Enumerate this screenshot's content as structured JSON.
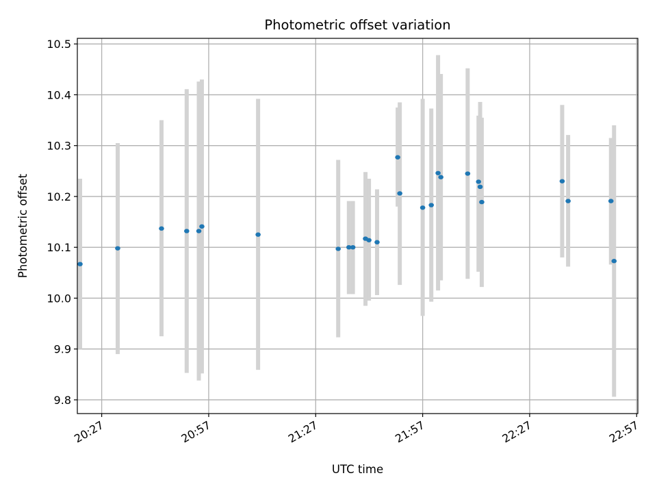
{
  "chart_data": {
    "type": "scatter",
    "title": "Photometric offset variation",
    "xlabel": "UTC time",
    "ylabel": "Photometric offset",
    "x_ticks": [
      "20:27",
      "20:57",
      "21:27",
      "21:57",
      "22:27",
      "22:57"
    ],
    "y_ticks": [
      "9.8",
      "9.9",
      "10.0",
      "10.1",
      "10.2",
      "10.3",
      "10.4",
      "10.5"
    ],
    "xlim": [
      "20:20:10",
      "22:57:20"
    ],
    "ylim": [
      9.773,
      10.511
    ],
    "grid": true,
    "colors": {
      "point": "#1f77b4",
      "errorbar": "#d3d3d3",
      "grid": "#b0b0b0"
    },
    "series": [
      {
        "points": [
          {
            "x": "20:20:56",
            "y": 10.067,
            "y_low": 9.9,
            "y_high": 10.235
          },
          {
            "x": "20:31:29",
            "y": 10.098,
            "y_low": 9.89,
            "y_high": 10.305
          },
          {
            "x": "20:43:46",
            "y": 10.137,
            "y_low": 9.925,
            "y_high": 10.35
          },
          {
            "x": "20:50:50",
            "y": 10.132,
            "y_low": 9.853,
            "y_high": 10.411
          },
          {
            "x": "20:54:14",
            "y": 10.132,
            "y_low": 9.838,
            "y_high": 10.426
          },
          {
            "x": "20:55:05",
            "y": 10.141,
            "y_low": 9.852,
            "y_high": 10.43
          },
          {
            "x": "21:10:51",
            "y": 10.125,
            "y_low": 9.859,
            "y_high": 10.392
          },
          {
            "x": "21:33:19",
            "y": 10.097,
            "y_low": 9.923,
            "y_high": 10.272
          },
          {
            "x": "21:36:19",
            "y": 10.1,
            "y_low": 10.008,
            "y_high": 10.191
          },
          {
            "x": "21:37:26",
            "y": 10.1,
            "y_low": 10.008,
            "y_high": 10.191
          },
          {
            "x": "21:40:58",
            "y": 10.117,
            "y_low": 9.985,
            "y_high": 10.248
          },
          {
            "x": "21:41:56",
            "y": 10.114,
            "y_low": 9.995,
            "y_high": 10.235
          },
          {
            "x": "21:44:13",
            "y": 10.11,
            "y_low": 10.006,
            "y_high": 10.214
          },
          {
            "x": "21:50:00",
            "y": 10.277,
            "y_low": 10.18,
            "y_high": 10.375
          },
          {
            "x": "21:50:35",
            "y": 10.206,
            "y_low": 10.026,
            "y_high": 10.385
          },
          {
            "x": "21:57:00",
            "y": 10.178,
            "y_low": 9.965,
            "y_high": 10.392
          },
          {
            "x": "21:59:25",
            "y": 10.183,
            "y_low": 9.993,
            "y_high": 10.373
          },
          {
            "x": "22:01:19",
            "y": 10.246,
            "y_low": 10.015,
            "y_high": 10.478
          },
          {
            "x": "22:02:06",
            "y": 10.238,
            "y_low": 10.035,
            "y_high": 10.441
          },
          {
            "x": "22:09:37",
            "y": 10.245,
            "y_low": 10.038,
            "y_high": 10.452
          },
          {
            "x": "22:12:40",
            "y": 10.229,
            "y_low": 10.052,
            "y_high": 10.359
          },
          {
            "x": "22:13:07",
            "y": 10.219,
            "y_low": 10.062,
            "y_high": 10.386
          },
          {
            "x": "22:13:34",
            "y": 10.189,
            "y_low": 10.022,
            "y_high": 10.355
          },
          {
            "x": "22:36:07",
            "y": 10.23,
            "y_low": 10.08,
            "y_high": 10.38
          },
          {
            "x": "22:37:47",
            "y": 10.191,
            "y_low": 10.062,
            "y_high": 10.321
          },
          {
            "x": "22:49:48",
            "y": 10.191,
            "y_low": 10.066,
            "y_high": 10.315
          },
          {
            "x": "22:50:40",
            "y": 10.073,
            "y_low": 9.806,
            "y_high": 10.34
          }
        ]
      }
    ]
  }
}
